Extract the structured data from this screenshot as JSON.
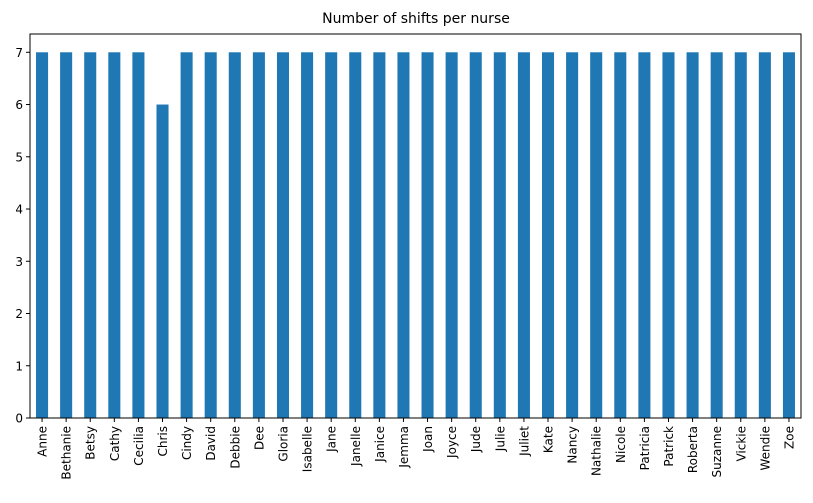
{
  "chart_data": {
    "type": "bar",
    "title": "Number of shifts per nurse",
    "xlabel": "",
    "ylabel": "",
    "categories": [
      "Anne",
      "Bethanie",
      "Betsy",
      "Cathy",
      "Cecilia",
      "Chris",
      "Cindy",
      "David",
      "Debbie",
      "Dee",
      "Gloria",
      "Isabelle",
      "Jane",
      "Janelle",
      "Janice",
      "Jemma",
      "Joan",
      "Joyce",
      "Jude",
      "Julie",
      "Juliet",
      "Kate",
      "Nancy",
      "Nathalie",
      "Nicole",
      "Patricia",
      "Patrick",
      "Roberta",
      "Suzanne",
      "Vickie",
      "Wendie",
      "Zoe"
    ],
    "values": [
      7,
      7,
      7,
      7,
      7,
      6,
      7,
      7,
      7,
      7,
      7,
      7,
      7,
      7,
      7,
      7,
      7,
      7,
      7,
      7,
      7,
      7,
      7,
      7,
      7,
      7,
      7,
      7,
      7,
      7,
      7,
      7
    ],
    "ylim": [
      0,
      7.35
    ],
    "yticks": [
      0,
      1,
      2,
      3,
      4,
      5,
      6,
      7
    ],
    "grid": false,
    "legend": "none",
    "bar_color": "#1f77b4"
  }
}
